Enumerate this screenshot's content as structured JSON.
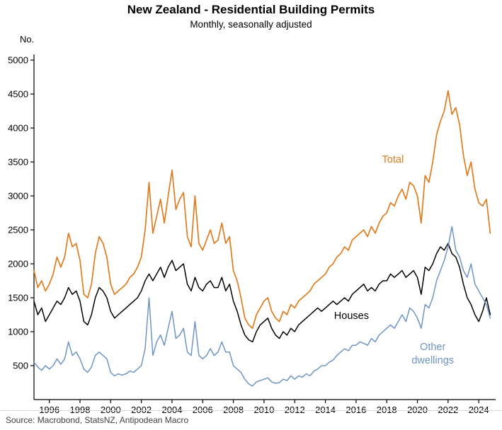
{
  "chart_data": {
    "type": "line",
    "title": "New Zealand - Residential Building Permits",
    "subtitle": "Monthly, seasonally adjusted",
    "ylabel": "No.",
    "source": "Source: Macrobond, StatsNZ, Antipodean Macro",
    "x_range": [
      1995,
      2025.1
    ],
    "y_range": [
      0,
      5000
    ],
    "x_start": 1995,
    "x_step": 0.25,
    "x_ticks": [
      1996,
      1998,
      2000,
      2002,
      2004,
      2006,
      2008,
      2010,
      2012,
      2014,
      2016,
      2018,
      2020,
      2022,
      2024
    ],
    "y_ticks": [
      500,
      1000,
      1500,
      2000,
      2500,
      3000,
      3500,
      4000,
      4500,
      5000
    ],
    "grid": false,
    "legend_position": "inline-annotations",
    "axis_color": "#000000",
    "series": [
      {
        "name": "Total",
        "color": "#E07C1F",
        "width": 1.7,
        "values": [
          1900,
          1650,
          1750,
          1600,
          1700,
          1850,
          2100,
          1950,
          2100,
          2450,
          2250,
          2300,
          2050,
          1550,
          1500,
          1700,
          2150,
          2400,
          2300,
          2100,
          1700,
          1550,
          1600,
          1650,
          1700,
          1800,
          1850,
          1950,
          2100,
          2500,
          3200,
          2450,
          2700,
          2950,
          2600,
          3000,
          3380,
          2800,
          2950,
          3050,
          2400,
          2250,
          3000,
          2300,
          2200,
          2350,
          2500,
          2300,
          2350,
          2600,
          2300,
          2400,
          1900,
          1750,
          1500,
          1200,
          1100,
          1050,
          1250,
          1350,
          1450,
          1500,
          1300,
          1200,
          1150,
          1300,
          1250,
          1400,
          1350,
          1450,
          1500,
          1550,
          1600,
          1700,
          1750,
          1800,
          1850,
          1950,
          2000,
          2100,
          2150,
          2250,
          2200,
          2350,
          2400,
          2450,
          2500,
          2400,
          2550,
          2450,
          2600,
          2700,
          2750,
          2900,
          2850,
          3000,
          3100,
          2950,
          3200,
          3150,
          3000,
          2600,
          3300,
          3200,
          3500,
          3900,
          4100,
          4250,
          4550,
          4200,
          4300,
          4050,
          3600,
          3300,
          3500,
          3100,
          2900,
          2850,
          2950,
          2450
        ]
      },
      {
        "name": "Houses",
        "color": "#000000",
        "width": 1.5,
        "values": [
          1450,
          1250,
          1350,
          1150,
          1250,
          1350,
          1450,
          1400,
          1500,
          1650,
          1550,
          1600,
          1450,
          1150,
          1100,
          1250,
          1500,
          1650,
          1600,
          1500,
          1300,
          1200,
          1250,
          1300,
          1350,
          1400,
          1450,
          1500,
          1600,
          1750,
          1850,
          1750,
          1850,
          1950,
          1800,
          1950,
          2050,
          1900,
          1950,
          2000,
          1700,
          1600,
          1800,
          1650,
          1600,
          1700,
          1750,
          1650,
          1650,
          1800,
          1600,
          1700,
          1450,
          1300,
          1100,
          950,
          880,
          850,
          1000,
          1100,
          1150,
          1200,
          1050,
          950,
          900,
          1000,
          950,
          1050,
          1000,
          1100,
          1150,
          1200,
          1250,
          1300,
          1350,
          1300,
          1350,
          1400,
          1450,
          1400,
          1450,
          1500,
          1450,
          1550,
          1600,
          1650,
          1700,
          1600,
          1650,
          1600,
          1700,
          1750,
          1750,
          1850,
          1800,
          1850,
          1900,
          1800,
          1850,
          1900,
          1800,
          1550,
          1950,
          1900,
          2000,
          2150,
          2250,
          2200,
          2300,
          2150,
          2100,
          1950,
          1700,
          1500,
          1400,
          1250,
          1150,
          1300,
          1500,
          1250
        ]
      },
      {
        "name": "Other dwellings",
        "color": "#6E95C5",
        "width": 1.5,
        "values": [
          550,
          480,
          430,
          500,
          450,
          500,
          600,
          520,
          600,
          850,
          650,
          700,
          600,
          450,
          400,
          480,
          650,
          700,
          650,
          600,
          400,
          350,
          380,
          360,
          380,
          420,
          400,
          450,
          500,
          750,
          1500,
          650,
          850,
          950,
          800,
          1050,
          1300,
          900,
          950,
          1050,
          700,
          650,
          1150,
          650,
          600,
          650,
          750,
          650,
          700,
          850,
          700,
          700,
          500,
          450,
          400,
          300,
          230,
          200,
          260,
          280,
          300,
          320,
          260,
          240,
          250,
          300,
          280,
          350,
          300,
          350,
          330,
          380,
          350,
          420,
          450,
          500,
          500,
          550,
          580,
          650,
          700,
          750,
          720,
          800,
          800,
          850,
          830,
          800,
          900,
          850,
          950,
          1000,
          1050,
          1100,
          1050,
          1150,
          1250,
          1150,
          1350,
          1300,
          1200,
          1050,
          1400,
          1350,
          1500,
          1750,
          1900,
          2050,
          2250,
          2550,
          2200,
          2100,
          1900,
          1800,
          2000,
          1700,
          1600,
          1500,
          1400,
          1200
        ]
      }
    ],
    "annotations": [
      {
        "text": "Total",
        "x": 2018.4,
        "y": 3490,
        "color": "#E07C1F",
        "size": 14.5
      },
      {
        "text": "Houses",
        "x": 2015.7,
        "y": 1190,
        "color": "#000000",
        "size": 14.5
      },
      {
        "text": "Other",
        "x": 2021.0,
        "y": 730,
        "color": "#6E95C5",
        "size": 14.5
      },
      {
        "text": "dwellings",
        "x": 2021.0,
        "y": 530,
        "color": "#6E95C5",
        "size": 14.5
      }
    ]
  }
}
